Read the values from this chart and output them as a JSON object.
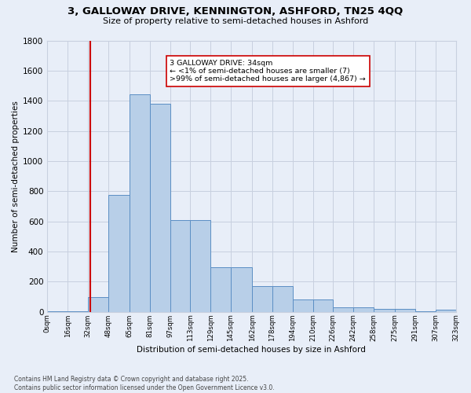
{
  "title": "3, GALLOWAY DRIVE, KENNINGTON, ASHFORD, TN25 4QQ",
  "subtitle": "Size of property relative to semi-detached houses in Ashford",
  "xlabel": "Distribution of semi-detached houses by size in Ashford",
  "ylabel": "Number of semi-detached properties",
  "annotation_title": "3 GALLOWAY DRIVE: 34sqm",
  "annotation_line2": "← <1% of semi-detached houses are smaller (7)",
  "annotation_line3": ">99% of semi-detached houses are larger (4,867) →",
  "footer_line1": "Contains HM Land Registry data © Crown copyright and database right 2025.",
  "footer_line2": "Contains public sector information licensed under the Open Government Licence v3.0.",
  "bar_edges": [
    0,
    16,
    32,
    48,
    65,
    81,
    97,
    113,
    129,
    145,
    162,
    178,
    194,
    210,
    226,
    242,
    258,
    275,
    291,
    307,
    323
  ],
  "bar_values": [
    2,
    3,
    100,
    775,
    1445,
    1380,
    610,
    610,
    295,
    295,
    170,
    170,
    80,
    80,
    28,
    28,
    18,
    18,
    2,
    15
  ],
  "bar_color": "#b8cfe8",
  "bar_edge_color": "#5b8ec4",
  "reference_line_x": 34,
  "reference_line_color": "#cc0000",
  "ylim": [
    0,
    1800
  ],
  "background_color": "#e8eef8",
  "grid_color": "#c8d0df",
  "tick_labels": [
    "0sqm",
    "16sqm",
    "32sqm",
    "48sqm",
    "65sqm",
    "81sqm",
    "97sqm",
    "113sqm",
    "129sqm",
    "145sqm",
    "162sqm",
    "178sqm",
    "194sqm",
    "210sqm",
    "226sqm",
    "242sqm",
    "258sqm",
    "275sqm",
    "291sqm",
    "307sqm",
    "323sqm"
  ]
}
